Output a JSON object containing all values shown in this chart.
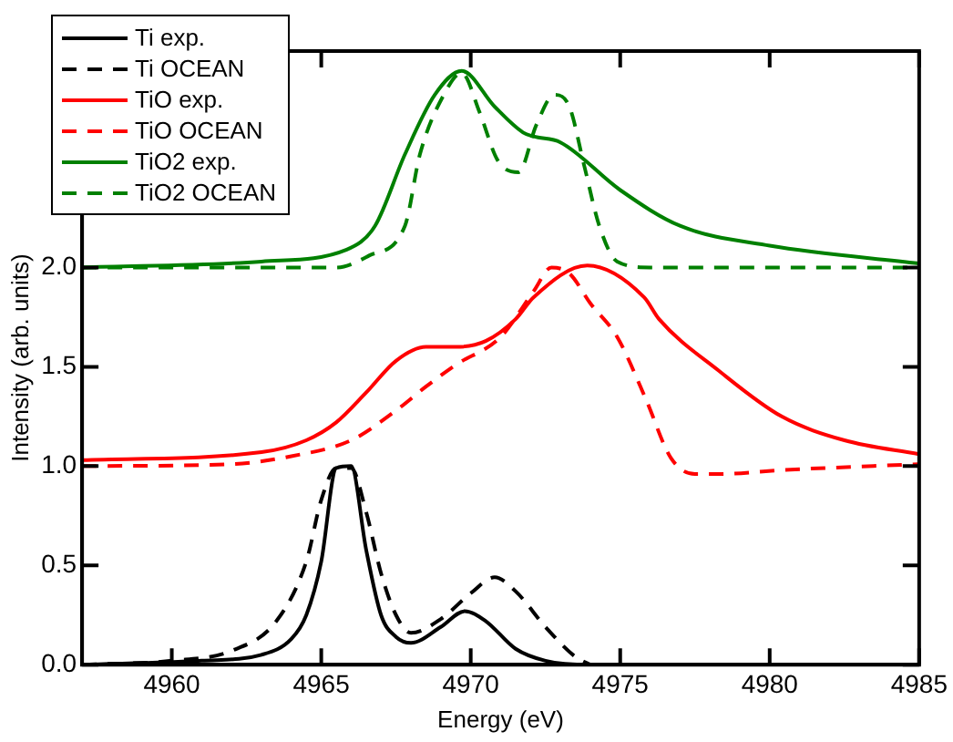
{
  "chart_data": {
    "type": "line",
    "xlabel": "Energy (eV)",
    "ylabel": "Intensity (arb. units)",
    "xlim": [
      4957,
      4985
    ],
    "xticks": [
      4960,
      4965,
      4970,
      4975,
      4980,
      4985
    ],
    "ylim": [
      0,
      3.09
    ],
    "yticks": [
      {
        "value": 0,
        "label": "0.0"
      },
      {
        "value": 0.5,
        "label": "0.5"
      },
      {
        "value": 1,
        "label": "1.0"
      },
      {
        "value": 1.5,
        "label": "1.5"
      },
      {
        "value": 2,
        "label": "2.0"
      }
    ],
    "grid": false,
    "legend": "top left",
    "marker": "none",
    "series": [
      {
        "name": "Ti exp.",
        "color": "#000000",
        "line_style": "solid",
        "x": [
          4957,
          4961,
          4963,
          4964,
          4964.5,
          4965,
          4965.5,
          4966,
          4966.5,
          4967,
          4967.5,
          4968,
          4969,
          4969.8,
          4970.5,
          4971.5,
          4972.5,
          4974,
          4985
        ],
        "values": [
          0,
          0.02,
          0.05,
          0.13,
          0.25,
          0.52,
          0.99,
          1.0,
          0.58,
          0.25,
          0.14,
          0.11,
          0.19,
          0.27,
          0.22,
          0.08,
          0.02,
          0,
          0
        ]
      },
      {
        "name": "Ti OCEAN",
        "color": "#000000",
        "line_style": "dashed",
        "x": [
          4957,
          4960,
          4962,
          4963.5,
          4964.5,
          4965,
          4965.5,
          4966,
          4966.5,
          4967,
          4967.5,
          4968,
          4969,
          4970,
          4970.8,
          4971.5,
          4972.5,
          4973.5,
          4974
        ],
        "values": [
          0,
          0.02,
          0.07,
          0.22,
          0.52,
          0.83,
          0.99,
          0.99,
          0.77,
          0.46,
          0.25,
          0.16,
          0.23,
          0.36,
          0.44,
          0.37,
          0.19,
          0.04,
          0
        ]
      },
      {
        "name": "TiO exp.",
        "color": "#ff0000",
        "line_style": "solid",
        "x": [
          4957,
          4963,
          4964.5,
          4965.5,
          4966.5,
          4967.5,
          4968.5,
          4969.5,
          4970.5,
          4971.5,
          4972.1,
          4973.9,
          4975.8,
          4976.3,
          4978.3,
          4980.4,
          4982.5,
          4985
        ],
        "values": [
          1.03,
          1.07,
          1.13,
          1.22,
          1.37,
          1.53,
          1.6,
          1.6,
          1.63,
          1.74,
          1.85,
          2.01,
          1.85,
          1.74,
          1.48,
          1.25,
          1.13,
          1.06
        ]
      },
      {
        "name": "TiO OCEAN",
        "color": "#ff0000",
        "line_style": "dashed",
        "x": [
          4957,
          4962,
          4964,
          4966,
          4967.5,
          4968.5,
          4969.5,
          4971,
          4972.1,
          4972.7,
          4973.3,
          4974,
          4974.9,
          4975.85,
          4976.7,
          4977.5,
          4978.3,
          4980.4,
          4985
        ],
        "values": [
          1.0,
          1.01,
          1.05,
          1.13,
          1.28,
          1.4,
          1.51,
          1.65,
          1.88,
          2.0,
          1.97,
          1.82,
          1.65,
          1.34,
          1.04,
          0.96,
          0.96,
          0.98,
          1.01
        ]
      },
      {
        "name": "TiO2 exp.",
        "color": "#008000",
        "line_style": "solid",
        "x": [
          4957,
          4963,
          4965.85,
          4966.8,
          4967.8,
          4968.8,
          4969.7,
          4970.8,
          4971.75,
          4972.1,
          4973,
          4975,
          4977,
          4980,
          4985
        ],
        "values": [
          2.0,
          2.03,
          2.09,
          2.21,
          2.57,
          2.87,
          2.99,
          2.81,
          2.68,
          2.66,
          2.63,
          2.39,
          2.21,
          2.11,
          2.02
        ]
      },
      {
        "name": "TiO2 OCEAN",
        "color": "#008000",
        "line_style": "dashed",
        "x": [
          4957,
          4965.5,
          4966.6,
          4967.8,
          4968.3,
          4969.1,
          4969.7,
          4970.3,
          4970.9,
          4971.6,
          4972.2,
          4972.8,
          4973.3,
          4973.8,
          4974.3,
          4974.9,
          4976,
          4985
        ],
        "values": [
          2.0,
          2.0,
          2.06,
          2.21,
          2.57,
          2.87,
          2.98,
          2.78,
          2.54,
          2.48,
          2.72,
          2.87,
          2.81,
          2.51,
          2.21,
          2.03,
          2.0,
          2.0
        ]
      }
    ]
  }
}
